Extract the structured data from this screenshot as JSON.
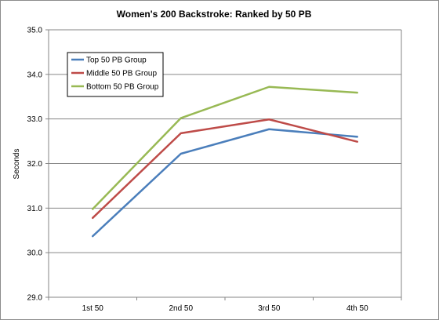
{
  "chart_data": {
    "type": "line",
    "title": "Women's 200 Backstroke: Ranked by 50 PB",
    "xlabel": "",
    "ylabel": "Seconds",
    "categories": [
      "1st 50",
      "2nd 50",
      "3rd 50",
      "4th 50"
    ],
    "ylim": [
      29.0,
      35.0
    ],
    "yticks": [
      "29.0",
      "30.0",
      "31.0",
      "32.0",
      "33.0",
      "34.0",
      "35.0"
    ],
    "grid": true,
    "legend_position": "top-left",
    "series": [
      {
        "name": "Top 50 PB Group",
        "color": "#4a7ebb",
        "values": [
          30.37,
          32.22,
          32.77,
          32.6
        ]
      },
      {
        "name": "Middle 50 PB Group",
        "color": "#be4b48",
        "values": [
          30.78,
          32.68,
          32.99,
          32.49
        ]
      },
      {
        "name": "Bottom 50 PB Group",
        "color": "#98b954",
        "values": [
          30.98,
          33.02,
          33.72,
          33.59
        ]
      }
    ]
  }
}
